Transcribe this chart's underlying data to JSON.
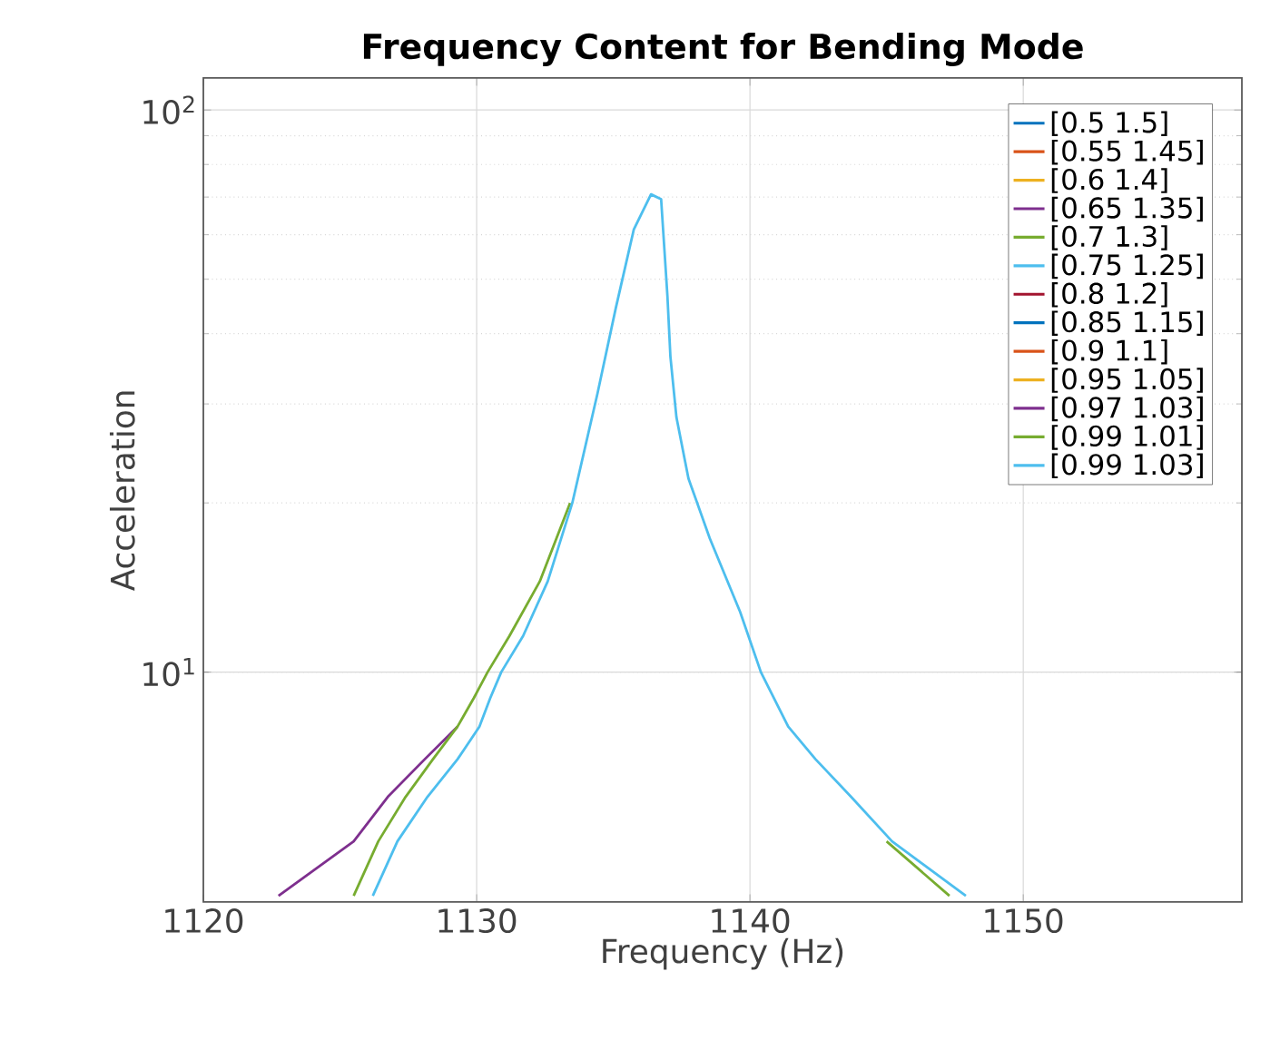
{
  "chart_data": {
    "type": "line",
    "title": "Frequency Content for Bending Mode",
    "xlabel": "Frequency (Hz)",
    "ylabel": "Acceleration",
    "log": "y",
    "grid": true,
    "legend": "top right",
    "xlim": [
      1120,
      1158
    ],
    "xticks": [
      1120,
      1130,
      1140,
      1150
    ],
    "ylim": [
      3.9,
      114
    ],
    "yticks": [
      {
        "value": 10,
        "label": "10$^{1}$"
      },
      {
        "value": 100,
        "label": "10$^{2}$"
      }
    ],
    "series": [
      {
        "name": "[0.5 1.5]",
        "color": "#0072bd",
        "values": [
          null
        ]
      },
      {
        "name": "[0.55 1.45]",
        "color": "#d95319",
        "values": [
          null
        ]
      },
      {
        "name": "[0.6 1.4]",
        "color": "#edb120",
        "values": [
          null
        ]
      },
      {
        "name": "[0.65 1.35]",
        "color": "#7e2f8e",
        "values": [
          null
        ]
      },
      {
        "name": "[0.7 1.3]",
        "color": "#77ac30",
        "values": [
          null
        ]
      },
      {
        "name": "[0.75 1.25]",
        "color": "#4dbeee",
        "values": [
          null
        ]
      },
      {
        "name": "[0.8 1.2]",
        "color": "#a2142f",
        "values": [
          null
        ]
      },
      {
        "name": "[0.85 1.15]",
        "color": "#0072bd",
        "values": [
          null
        ]
      },
      {
        "name": "[0.9 1.1]",
        "color": "#d95319",
        "values": [
          null
        ]
      },
      {
        "name": "[0.95 1.05]",
        "color": "#edb120",
        "values": [
          null
        ]
      },
      {
        "name": "[0.97 1.03]",
        "color": "#7e2f8e",
        "x": [
          1122.75,
          1125.5,
          1126.75,
          1128.1,
          1129.3
        ],
        "values": [
          4,
          5,
          6,
          7,
          8
        ]
      },
      {
        "name": "[0.99 1.01]",
        "color": "#77ac30",
        "x": [
          1125.5,
          1126.4,
          1127.4,
          1128.4,
          1129.3,
          1129.9,
          1130.4,
          1131.2,
          1132.31,
          1133.42,
          1140.0,
          1145.0,
          1147.3
        ],
        "values": [
          4,
          5,
          6,
          7,
          8,
          9,
          10,
          11.6,
          14.5,
          20,
          null,
          5,
          4
        ]
      },
      {
        "name": "[0.99 1.03]",
        "color": "#4dbeee",
        "x": [
          1126.2,
          1127.1,
          1128.2,
          1129.3,
          1130.1,
          1130.5,
          1130.9,
          1131.7,
          1132.6,
          1133.5,
          1134.42,
          1135.09,
          1135.75,
          1136.38,
          1136.75,
          1136.98,
          1137.09,
          1137.31,
          1137.75,
          1138.53,
          1139.64,
          1140.4,
          1141.4,
          1142.4,
          1143.7,
          1145.2,
          1147.9
        ],
        "values": [
          4,
          5,
          6,
          7,
          8,
          9,
          10,
          11.6,
          14.5,
          20,
          31.3,
          44.4,
          61.3,
          70.8,
          69.4,
          46.7,
          36.4,
          28.4,
          22.1,
          17.3,
          12.8,
          10,
          8,
          7,
          6,
          5,
          4
        ]
      }
    ]
  }
}
